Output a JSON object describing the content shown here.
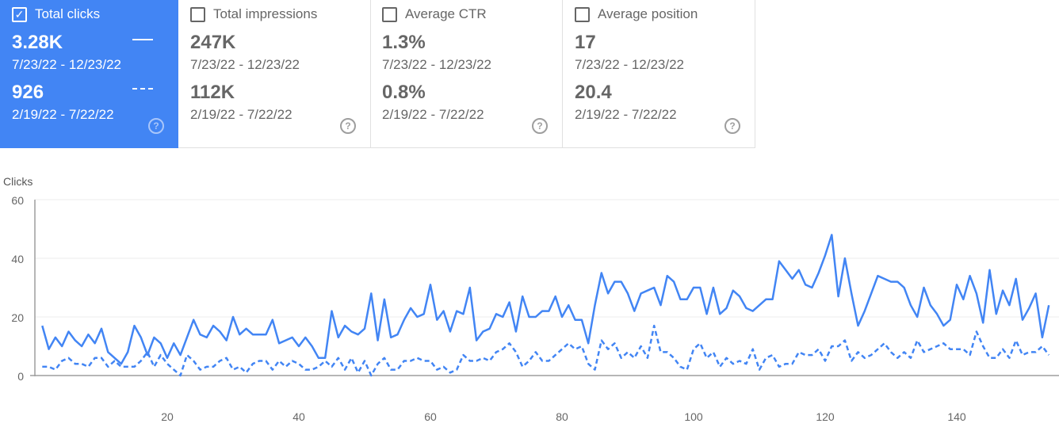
{
  "cards": [
    {
      "label": "Total clicks",
      "checked": true,
      "value_current": "3.28K",
      "range_current": "7/23/22 - 12/23/22",
      "value_previous": "926",
      "range_previous": "2/19/22 - 7/22/22"
    },
    {
      "label": "Total impressions",
      "checked": false,
      "value_current": "247K",
      "range_current": "7/23/22 - 12/23/22",
      "value_previous": "112K",
      "range_previous": "2/19/22 - 7/22/22"
    },
    {
      "label": "Average CTR",
      "checked": false,
      "value_current": "1.3%",
      "range_current": "7/23/22 - 12/23/22",
      "value_previous": "0.8%",
      "range_previous": "2/19/22 - 7/22/22"
    },
    {
      "label": "Average position",
      "checked": false,
      "value_current": "17",
      "range_current": "7/23/22 - 12/23/22",
      "value_previous": "20.4",
      "range_previous": "2/19/22 - 7/22/22"
    }
  ],
  "icons": {
    "checkbox_checked": "✓",
    "help": "?"
  },
  "colors": {
    "accent": "#4285f4"
  },
  "chart_data": {
    "type": "line",
    "ylabel": "Clicks",
    "ylim": [
      0,
      60
    ],
    "yticks": [
      0,
      20,
      40,
      60
    ],
    "xticks": [
      20,
      40,
      60,
      80,
      100,
      120,
      140
    ],
    "series": [
      {
        "name": "7/23/22 - 12/23/22",
        "style": "solid",
        "values": [
          17,
          9,
          13,
          10,
          15,
          12,
          10,
          14,
          11,
          16,
          8,
          6,
          4,
          8,
          17,
          13,
          7,
          13,
          11,
          6,
          11,
          7,
          13,
          19,
          14,
          13,
          17,
          15,
          12,
          20,
          14,
          16,
          14,
          14,
          14,
          19,
          11,
          12,
          13,
          10,
          13,
          10,
          6,
          6,
          22,
          13,
          17,
          15,
          14,
          16,
          28,
          12,
          26,
          13,
          14,
          19,
          23,
          20,
          21,
          31,
          19,
          22,
          15,
          22,
          21,
          30,
          12,
          15,
          16,
          21,
          20,
          25,
          15,
          27,
          20,
          20,
          22,
          22,
          27,
          20,
          24,
          19,
          19,
          11,
          24,
          35,
          28,
          32,
          32,
          28,
          22,
          28,
          29,
          30,
          24,
          34,
          32,
          26,
          26,
          30,
          30,
          21,
          30,
          21,
          23,
          29,
          27,
          23,
          22,
          24,
          26,
          26,
          39,
          36,
          33,
          36,
          31,
          30,
          35,
          41,
          48,
          27,
          40,
          28,
          17,
          22,
          28,
          34,
          33,
          32,
          32,
          30,
          24,
          20,
          30,
          24,
          21,
          17,
          19,
          31,
          26,
          34,
          28,
          18,
          36,
          21,
          29,
          24,
          33,
          19,
          23,
          28,
          13,
          24
        ]
      },
      {
        "name": "2/19/22 - 7/22/22",
        "style": "dashed",
        "values": [
          3,
          3,
          2,
          5,
          6,
          4,
          4,
          3,
          6,
          6,
          3,
          5,
          3,
          3,
          3,
          5,
          8,
          3,
          7,
          4,
          2,
          0,
          7,
          5,
          2,
          3,
          3,
          5,
          6,
          2,
          3,
          1,
          4,
          5,
          5,
          2,
          5,
          3,
          5,
          4,
          2,
          2,
          3,
          5,
          3,
          6,
          2,
          6,
          1,
          5,
          0,
          4,
          6,
          2,
          2,
          5,
          5,
          6,
          5,
          5,
          2,
          3,
          1,
          2,
          7,
          5,
          5,
          6,
          5,
          8,
          9,
          11,
          8,
          3,
          5,
          8,
          5,
          5,
          7,
          9,
          11,
          9,
          10,
          4,
          2,
          12,
          9,
          11,
          6,
          8,
          6,
          10,
          6,
          17,
          8,
          8,
          6,
          3,
          2,
          9,
          11,
          6,
          8,
          3,
          6,
          4,
          5,
          4,
          9,
          2,
          6,
          7,
          3,
          4,
          4,
          8,
          7,
          7,
          9,
          5,
          10,
          10,
          12,
          5,
          8,
          6,
          7,
          9,
          11,
          8,
          6,
          8,
          6,
          12,
          8,
          9,
          10,
          11,
          9,
          9,
          9,
          7,
          15,
          10,
          6,
          6,
          9,
          6,
          12,
          7,
          8,
          8,
          10,
          7
        ]
      }
    ]
  }
}
